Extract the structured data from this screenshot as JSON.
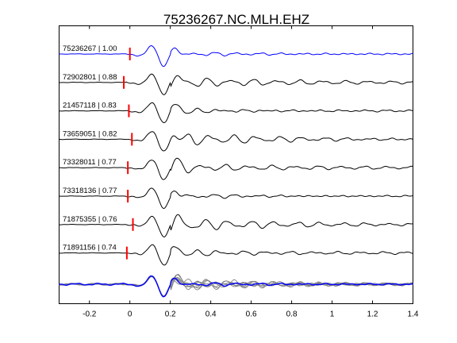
{
  "chart_data": {
    "type": "line",
    "title": "75236267.NC.MLH.EHZ",
    "xlabel": "",
    "ylabel": "",
    "xlim": [
      -0.35,
      1.4
    ],
    "x_ticks": [
      -0.2,
      0,
      0.2,
      0.4,
      0.6,
      0.8,
      1,
      1.2,
      1.4
    ],
    "x_tick_labels": [
      "-0.2",
      "0",
      "0.2",
      "0.4",
      "0.6",
      "0.8",
      "1",
      "1.2",
      "1.4"
    ],
    "grid": false,
    "legend": "none",
    "colors": {
      "master": "#0000ff",
      "trace": "#000000",
      "pick": "#ff0000",
      "stack_trace": "#808080"
    },
    "series": [
      {
        "name": "75236267 | 1.00",
        "pick_time": 0.0,
        "color": "#0000ff"
      },
      {
        "name": "72902801 | 0.88",
        "pick_time": -0.03,
        "color": "#000000"
      },
      {
        "name": "21457118 | 0.83",
        "pick_time": -0.005,
        "color": "#000000"
      },
      {
        "name": "73659051 | 0.82",
        "pick_time": 0.01,
        "color": "#000000"
      },
      {
        "name": "73328011 | 0.77",
        "pick_time": -0.01,
        "color": "#000000"
      },
      {
        "name": "73318136 | 0.77",
        "pick_time": -0.01,
        "color": "#000000"
      },
      {
        "name": "71875355 | 0.76",
        "pick_time": 0.015,
        "color": "#000000"
      },
      {
        "name": "71891156 | 0.74",
        "pick_time": -0.015,
        "color": "#000000"
      }
    ]
  }
}
